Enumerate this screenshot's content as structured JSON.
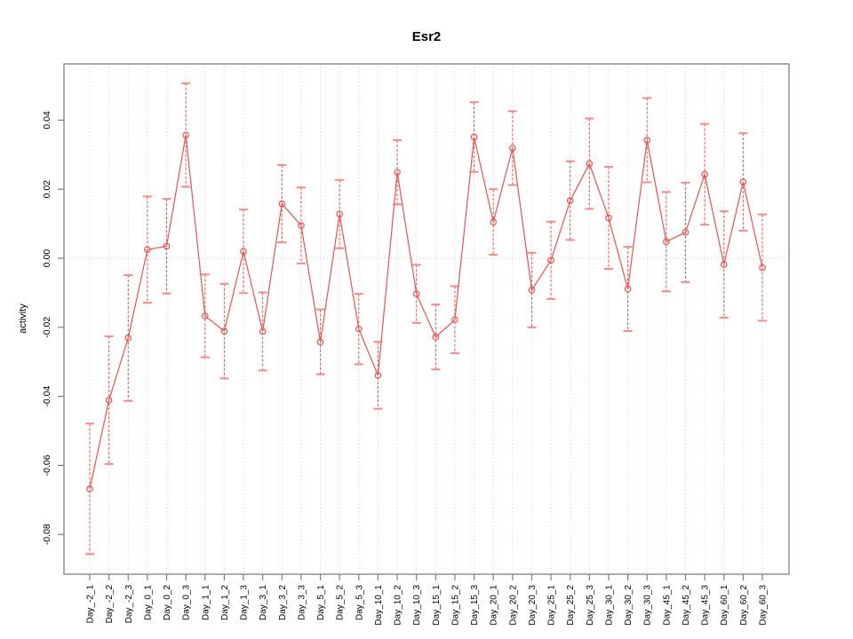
{
  "chart_data": {
    "type": "line",
    "title": "Esr2",
    "xlabel": "",
    "ylabel": "activity",
    "marker": "open-circle",
    "error_bars": true,
    "legend": "none",
    "grid": {
      "vertical": "dotted line at every category",
      "horizontal": "dotted line at y=0 only"
    },
    "ylim": [
      -0.091,
      0.056
    ],
    "y_tick_labels": [
      "0.04",
      "0.02",
      "0.00",
      "-0.02",
      "-0.04",
      "-0.06",
      "-0.08"
    ],
    "categories": [
      "Day_-2_1",
      "Day_-2_2",
      "Day_-2_3",
      "Day_0_1",
      "Day_0_2",
      "Day_0_3",
      "Day_1_1",
      "Day_1_2",
      "Day_1_3",
      "Day_3_1",
      "Day_3_2",
      "Day_3_3",
      "Day_5_1",
      "Day_5_2",
      "Day_5_3",
      "Day_10_1",
      "Day_10_2",
      "Day_10_3",
      "Day_15_1",
      "Day_15_2",
      "Day_15_3",
      "Day_20_1",
      "Day_20_2",
      "Day_20_3",
      "Day_25_1",
      "Day_25_2",
      "Day_25_3",
      "Day_30_1",
      "Day_30_2",
      "Day_30_3",
      "Day_45_1",
      "Day_45_2",
      "Day_45_3",
      "Day_60_1",
      "Day_60_2",
      "Day_60_3"
    ],
    "series": [
      {
        "name": "activity",
        "values": [
          -0.0668,
          -0.0411,
          -0.0231,
          0.0025,
          0.0035,
          0.0357,
          -0.0167,
          -0.0211,
          0.002,
          -0.0212,
          0.0158,
          0.0095,
          -0.0242,
          0.0128,
          -0.0205,
          -0.0339,
          0.0249,
          -0.0103,
          -0.0228,
          -0.0178,
          0.0351,
          0.0105,
          0.0319,
          -0.0092,
          -0.0006,
          0.0167,
          0.0274,
          0.0117,
          -0.0089,
          0.0342,
          0.0048,
          0.0075,
          0.0243,
          -0.0018,
          0.0221,
          -0.0027
        ],
        "errors": [
          0.0189,
          0.0185,
          0.0182,
          0.0154,
          0.0137,
          0.015,
          0.012,
          0.0137,
          0.0121,
          0.0113,
          0.0112,
          0.011,
          0.0094,
          0.0099,
          0.0102,
          0.0097,
          0.0093,
          0.0084,
          0.0094,
          0.0097,
          0.0101,
          0.0095,
          0.0107,
          0.0108,
          0.0112,
          0.0114,
          0.0131,
          0.0148,
          0.0122,
          0.0122,
          0.0144,
          0.0144,
          0.0146,
          0.0154,
          0.0141,
          0.0154
        ]
      }
    ],
    "colors": {
      "series": "#ef5350",
      "error_cap": "#f48a8a",
      "grid": "#d4d4d4",
      "zero_line": "#c9c9c9",
      "box": "#808080",
      "text": "#000000"
    }
  }
}
